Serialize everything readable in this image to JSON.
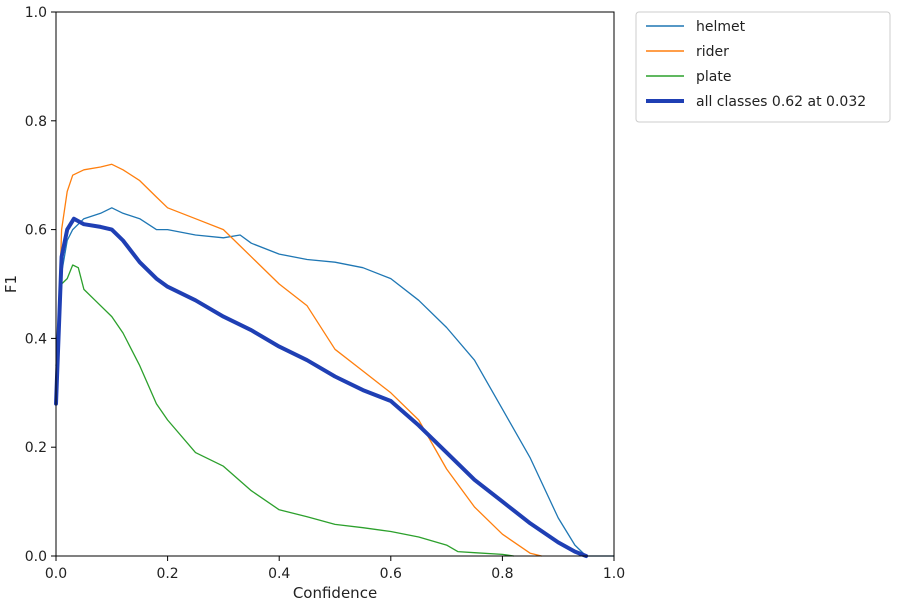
{
  "chart_data": {
    "type": "line",
    "title": "",
    "xlabel": "Confidence",
    "ylabel": "F1",
    "xlim": [
      0.0,
      1.0
    ],
    "ylim": [
      0.0,
      1.0
    ],
    "x_ticks": [
      "0.0",
      "0.2",
      "0.4",
      "0.6",
      "0.8",
      "1.0"
    ],
    "y_ticks": [
      "0.0",
      "0.2",
      "0.4",
      "0.6",
      "0.8",
      "1.0"
    ],
    "grid": false,
    "legend_position": "outside-top-right",
    "series": [
      {
        "name": "helmet",
        "color": "#1f77b4",
        "x": [
          0.0,
          0.01,
          0.02,
          0.03,
          0.05,
          0.08,
          0.1,
          0.12,
          0.15,
          0.18,
          0.2,
          0.25,
          0.3,
          0.33,
          0.35,
          0.4,
          0.45,
          0.5,
          0.55,
          0.6,
          0.65,
          0.7,
          0.75,
          0.8,
          0.85,
          0.9,
          0.93,
          0.95,
          1.0
        ],
        "y": [
          0.35,
          0.52,
          0.58,
          0.6,
          0.62,
          0.63,
          0.64,
          0.63,
          0.62,
          0.6,
          0.6,
          0.59,
          0.585,
          0.59,
          0.575,
          0.555,
          0.545,
          0.54,
          0.53,
          0.51,
          0.47,
          0.42,
          0.36,
          0.27,
          0.18,
          0.07,
          0.02,
          0.0,
          0.0
        ]
      },
      {
        "name": "rider",
        "color": "#ff7f0e",
        "x": [
          0.0,
          0.01,
          0.02,
          0.03,
          0.05,
          0.08,
          0.1,
          0.12,
          0.15,
          0.18,
          0.2,
          0.25,
          0.3,
          0.35,
          0.4,
          0.45,
          0.5,
          0.55,
          0.6,
          0.65,
          0.7,
          0.75,
          0.8,
          0.85,
          0.87
        ],
        "y": [
          0.28,
          0.6,
          0.67,
          0.7,
          0.71,
          0.715,
          0.72,
          0.71,
          0.69,
          0.66,
          0.64,
          0.62,
          0.6,
          0.55,
          0.5,
          0.46,
          0.38,
          0.34,
          0.3,
          0.25,
          0.16,
          0.09,
          0.04,
          0.005,
          0.0
        ]
      },
      {
        "name": "plate",
        "color": "#2ca02c",
        "x": [
          0.0,
          0.01,
          0.02,
          0.03,
          0.04,
          0.05,
          0.07,
          0.1,
          0.12,
          0.15,
          0.18,
          0.2,
          0.25,
          0.3,
          0.35,
          0.4,
          0.45,
          0.5,
          0.55,
          0.6,
          0.65,
          0.7,
          0.72,
          0.75,
          0.8,
          0.82
        ],
        "y": [
          0.28,
          0.5,
          0.51,
          0.535,
          0.53,
          0.49,
          0.47,
          0.44,
          0.41,
          0.35,
          0.28,
          0.25,
          0.19,
          0.165,
          0.12,
          0.085,
          0.072,
          0.058,
          0.052,
          0.045,
          0.035,
          0.02,
          0.008,
          0.006,
          0.003,
          0.0
        ]
      },
      {
        "name": "all classes 0.62 at 0.032",
        "color": "#1f3fb4",
        "emphasis": true,
        "x": [
          0.0,
          0.01,
          0.02,
          0.032,
          0.05,
          0.08,
          0.1,
          0.12,
          0.15,
          0.18,
          0.2,
          0.25,
          0.3,
          0.35,
          0.4,
          0.45,
          0.5,
          0.55,
          0.6,
          0.65,
          0.7,
          0.75,
          0.8,
          0.85,
          0.9,
          0.93,
          0.95
        ],
        "y": [
          0.28,
          0.55,
          0.6,
          0.62,
          0.61,
          0.605,
          0.6,
          0.58,
          0.54,
          0.51,
          0.495,
          0.47,
          0.44,
          0.415,
          0.385,
          0.36,
          0.33,
          0.305,
          0.285,
          0.24,
          0.19,
          0.14,
          0.1,
          0.06,
          0.025,
          0.008,
          0.0
        ]
      }
    ]
  }
}
